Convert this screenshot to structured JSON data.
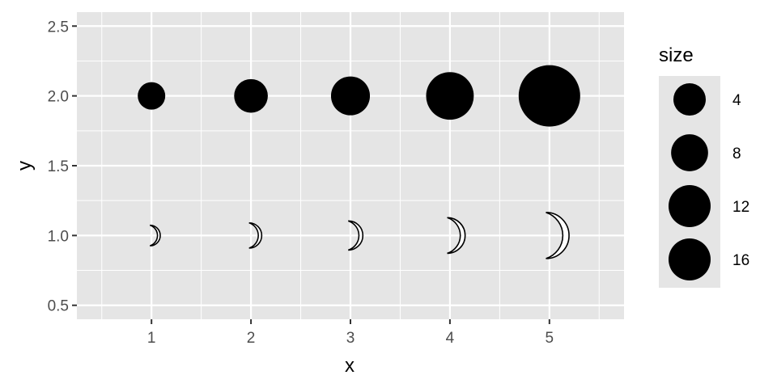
{
  "chart_data": {
    "type": "scatter",
    "title": "",
    "xlabel": "x",
    "ylabel": "y",
    "xlim": [
      0.25,
      5.75
    ],
    "ylim": [
      0.4,
      2.6
    ],
    "x_ticks": [
      1,
      2,
      3,
      4,
      5
    ],
    "x_tick_labels": [
      "1",
      "2",
      "3",
      "4",
      "5"
    ],
    "y_ticks": [
      0.5,
      1.0,
      1.5,
      2.0,
      2.5
    ],
    "y_tick_labels": [
      "0.5",
      "1.0",
      "1.5",
      "2.0",
      "2.5"
    ],
    "grid": true,
    "panel_background": "#e5e5e5",
    "grid_color": "#ffffff",
    "series": [
      {
        "marker": "filled-circle",
        "color": "#000000",
        "points": [
          {
            "x": 1,
            "y": 2.0,
            "size": 4
          },
          {
            "x": 2,
            "y": 2.0,
            "size": 6
          },
          {
            "x": 3,
            "y": 2.0,
            "size": 8
          },
          {
            "x": 4,
            "y": 2.0,
            "size": 12
          },
          {
            "x": 5,
            "y": 2.0,
            "size": 20
          }
        ]
      },
      {
        "marker": "crescent-moon-outline",
        "color": "#000000",
        "points": [
          {
            "x": 1,
            "y": 1.0,
            "size": 4
          },
          {
            "x": 2,
            "y": 1.0,
            "size": 6
          },
          {
            "x": 3,
            "y": 1.0,
            "size": 8
          },
          {
            "x": 4,
            "y": 1.0,
            "size": 12
          },
          {
            "x": 5,
            "y": 1.0,
            "size": 20
          }
        ]
      }
    ],
    "legend": {
      "title": "size",
      "placement": "right",
      "background": "#e5e5e5",
      "entries": [
        {
          "label": "4",
          "value": 4
        },
        {
          "label": "8",
          "value": 8
        },
        {
          "label": "12",
          "value": 12
        },
        {
          "label": "16",
          "value": 16
        }
      ]
    }
  }
}
